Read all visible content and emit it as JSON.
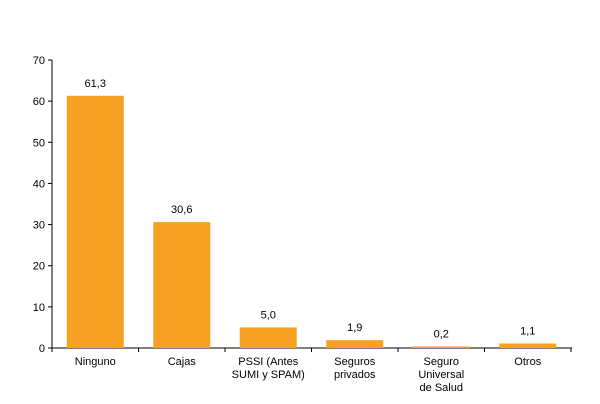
{
  "chart_data": {
    "type": "bar",
    "categories": [
      [
        "Ninguno"
      ],
      [
        "Cajas"
      ],
      [
        "PSSI (Antes",
        "SUMI y SPAM)"
      ],
      [
        "Seguros",
        "privados"
      ],
      [
        "Seguro",
        "Universal",
        "de Salud"
      ],
      [
        "Otros"
      ]
    ],
    "values": [
      61.3,
      30.6,
      5.0,
      1.9,
      0.2,
      1.1
    ],
    "data_labels": [
      "61,3",
      "30,6",
      "5,0",
      "1,9",
      "0,2",
      "1,1"
    ],
    "y_ticks": [
      0,
      10,
      20,
      30,
      40,
      50,
      60,
      70
    ],
    "y_tick_labels": [
      "0",
      "10",
      "20",
      "30",
      "40",
      "50",
      "60",
      "70"
    ],
    "ylim": [
      0,
      70
    ],
    "bar_color": "#F7A124",
    "grid": false,
    "legend": false
  }
}
